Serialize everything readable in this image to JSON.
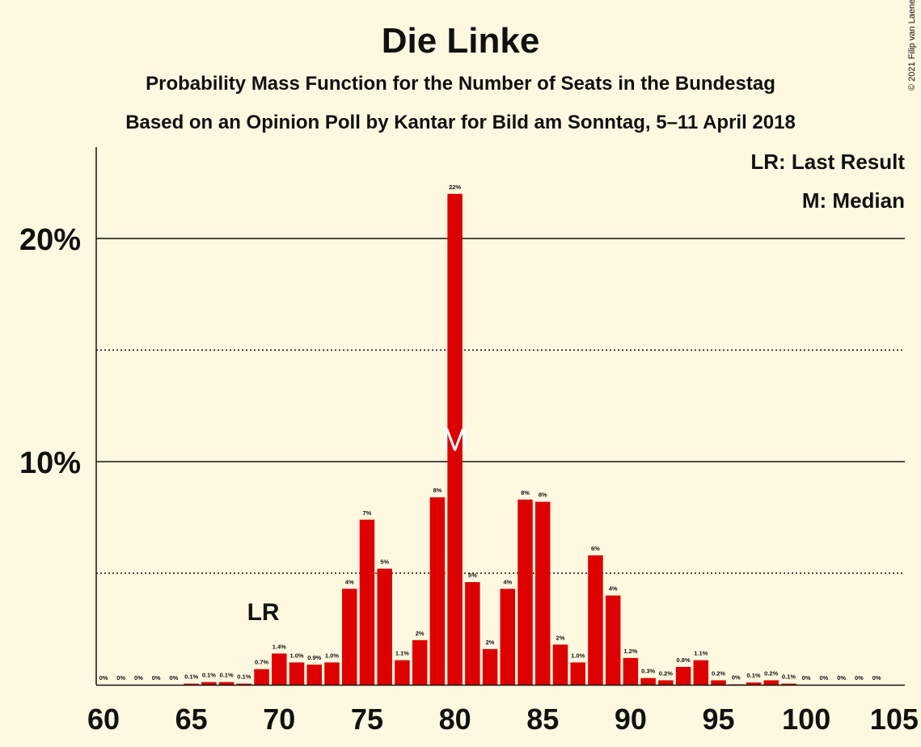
{
  "chart_data": {
    "type": "bar",
    "title": "Die Linke",
    "subtitle": "Probability Mass Function for the Number of Seats in the Bundestag",
    "subtitle2": "Based on an Opinion Poll by Kantar for Bild am Sonntag, 5–11 April 2018",
    "copyright": "© 2021 Filip van Laenen",
    "legend": {
      "last_result": "LR: Last Result",
      "median": "M: Median"
    },
    "x": [
      60,
      61,
      62,
      63,
      64,
      65,
      66,
      67,
      68,
      69,
      70,
      71,
      72,
      73,
      74,
      75,
      76,
      77,
      78,
      79,
      80,
      81,
      82,
      83,
      84,
      85,
      86,
      87,
      88,
      89,
      90,
      91,
      92,
      93,
      94,
      95,
      96,
      97,
      98,
      99,
      100,
      101,
      102,
      103,
      104
    ],
    "values": [
      0,
      0,
      0,
      0,
      0,
      0.05,
      0.12,
      0.12,
      0.05,
      0.7,
      1.4,
      1.0,
      0.9,
      1.0,
      4.3,
      7.4,
      5.2,
      1.1,
      2.0,
      8.4,
      22.0,
      4.6,
      1.6,
      4.3,
      8.3,
      8.2,
      1.8,
      1.0,
      5.8,
      4.0,
      1.2,
      0.3,
      0.2,
      0.8,
      1.1,
      0.2,
      0.02,
      0.1,
      0.2,
      0.05,
      0,
      0,
      0,
      0,
      0
    ],
    "labels": [
      "0%",
      "0%",
      "0%",
      "0%",
      "0%",
      "0.1%",
      "0.1%",
      "0.1%",
      "0.1%",
      "0.7%",
      "1.4%",
      "1.0%",
      "0.9%",
      "1.0%",
      "4%",
      "7%",
      "5%",
      "1.1%",
      "2%",
      "8%",
      "22%",
      "5%",
      "2%",
      "4%",
      "8%",
      "8%",
      "2%",
      "1.0%",
      "6%",
      "4%",
      "1.2%",
      "0.3%",
      "0.2%",
      "0.8%",
      "1.1%",
      "0.2%",
      "0%",
      "0.1%",
      "0.2%",
      "0.1%",
      "0%",
      "0%",
      "0%",
      "0%",
      "0%"
    ],
    "x_ticks": [
      "60",
      "65",
      "70",
      "75",
      "80",
      "85",
      "90",
      "95",
      "100",
      "105"
    ],
    "y_ticks": [
      "10%",
      "20%"
    ],
    "ylim": [
      0,
      24
    ],
    "last_result": 69,
    "last_result_label": "LR",
    "median": 80,
    "median_label": "M",
    "colors": {
      "bar": "#DD0000",
      "background": "#FFF8E1"
    }
  }
}
